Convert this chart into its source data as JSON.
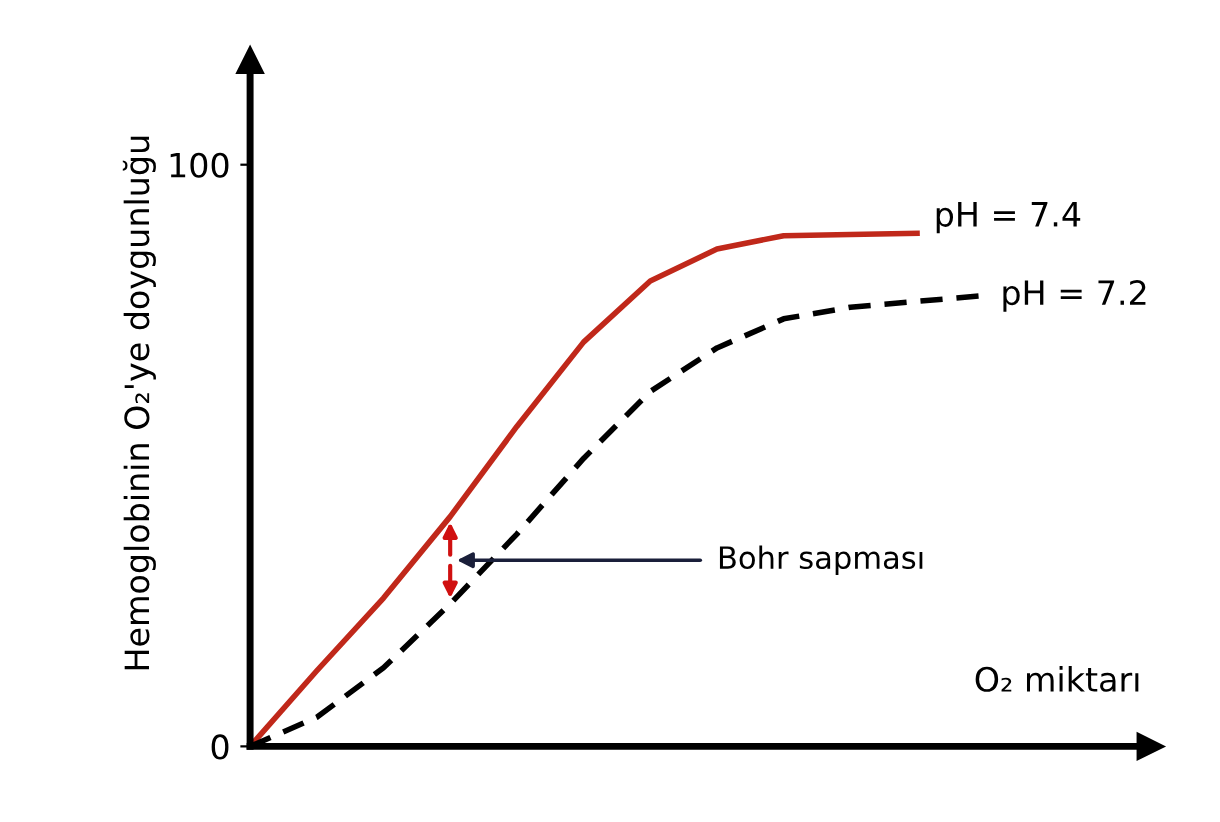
{
  "chart_data": {
    "type": "line",
    "ylabel": "Hemoglobinin O₂'ye doygunluğu",
    "xlabel": "O₂ miktarı",
    "categories": [
      null,
      null,
      null,
      null,
      null,
      null,
      null,
      null,
      null,
      null,
      null,
      null
    ],
    "series": [
      {
        "name": "pH = 7.4",
        "color": "#c0281a",
        "line_style": "solid",
        "values": [
          0,
          13,
          25.5,
          39.5,
          55,
          69.5,
          80,
          85.5,
          87.8,
          88,
          88.2,
          null
        ]
      },
      {
        "name": "pH = 7.2",
        "color": "#000000",
        "line_style": "dashed",
        "values": [
          0,
          5,
          13.5,
          24.5,
          36.5,
          49.5,
          61,
          68.5,
          73.5,
          75.5,
          76.5,
          77.5
        ]
      }
    ],
    "ylim": [
      0,
      118
    ],
    "yticks": [
      0,
      100
    ],
    "annotations": [
      "Bohr sapması"
    ],
    "grid": false,
    "legend": false,
    "marker": "none"
  }
}
